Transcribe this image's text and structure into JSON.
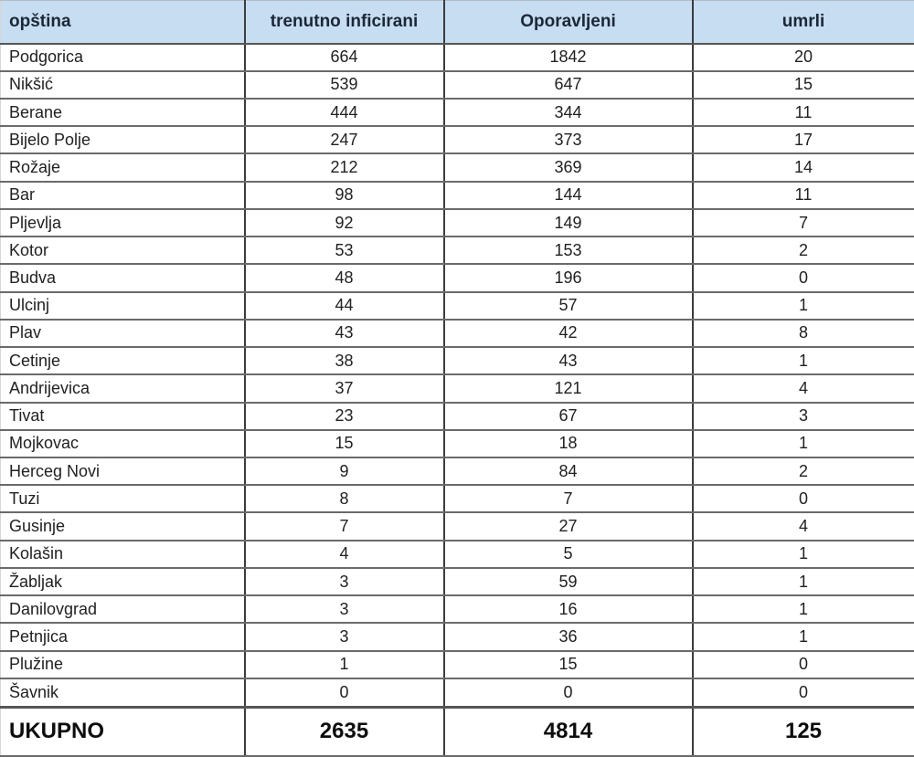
{
  "chart_data": {
    "type": "table",
    "title": "",
    "columns": [
      "opština",
      "trenutno inficirani",
      "Oporavljeni",
      "umrli"
    ],
    "rows": [
      [
        "Podgorica",
        "664",
        "1842",
        "20"
      ],
      [
        "Nikšić",
        "539",
        "647",
        "15"
      ],
      [
        "Berane",
        "444",
        "344",
        "11"
      ],
      [
        "Bijelo Polje",
        "247",
        "373",
        "17"
      ],
      [
        "Rožaje",
        "212",
        "369",
        "14"
      ],
      [
        "Bar",
        "98",
        "144",
        "11"
      ],
      [
        "Pljevlja",
        "92",
        "149",
        "7"
      ],
      [
        "Kotor",
        "53",
        "153",
        "2"
      ],
      [
        "Budva",
        "48",
        "196",
        "0"
      ],
      [
        "Ulcinj",
        "44",
        "57",
        "1"
      ],
      [
        "Plav",
        "43",
        "42",
        "8"
      ],
      [
        "Cetinje",
        "38",
        "43",
        "1"
      ],
      [
        "Andrijevica",
        "37",
        "121",
        "4"
      ],
      [
        "Tivat",
        "23",
        "67",
        "3"
      ],
      [
        "Mojkovac",
        "15",
        "18",
        "1"
      ],
      [
        "Herceg Novi",
        "9",
        "84",
        "2"
      ],
      [
        "Tuzi",
        "8",
        "7",
        "0"
      ],
      [
        "Gusinje",
        "7",
        "27",
        "4"
      ],
      [
        "Kolašin",
        "4",
        "5",
        "1"
      ],
      [
        "Žabljak",
        "3",
        "59",
        "1"
      ],
      [
        "Danilovgrad",
        "3",
        "16",
        "1"
      ],
      [
        "Petnjica",
        "3",
        "36",
        "1"
      ],
      [
        "Plužine",
        "1",
        "15",
        "0"
      ],
      [
        "Šavnik",
        "0",
        "0",
        "0"
      ]
    ],
    "total_row": [
      "UKUPNO",
      "2635",
      "4814",
      "125"
    ]
  },
  "colors": {
    "header_background": "#c7ddf1",
    "header_text": "#1c2738",
    "body_text": "#212121",
    "horizontal_border": "#6a6a6a",
    "vertical_border": "#3c3c3c",
    "total_separator": "#565656"
  }
}
